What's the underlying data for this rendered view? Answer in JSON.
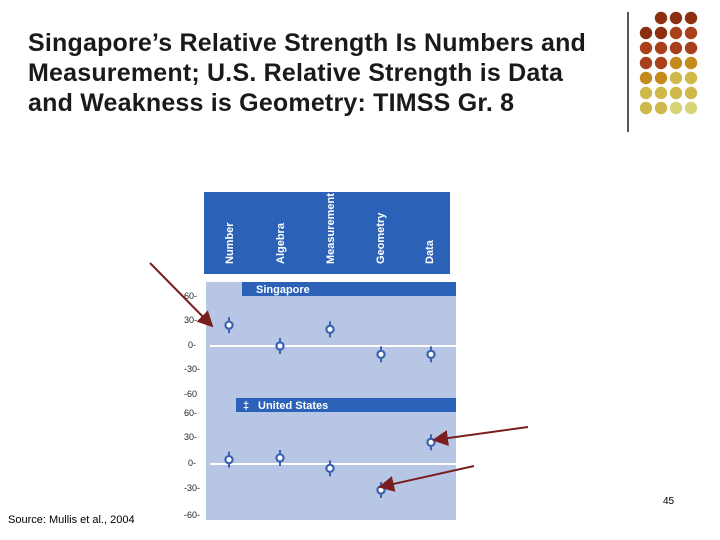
{
  "slide": {
    "title": "Singapore’s Relative Strength Is Numbers and Measurement; U.S. Relative Strength is Data and Weakness is Geometry: TIMSS Gr. 8",
    "source": "Source: Mullis et al., 2004",
    "page_number": "45"
  },
  "decor": {
    "dot_colors": [
      "#8b2f10",
      "#a8401c",
      "#c58a1c",
      "#cfb94a",
      "#d8d478"
    ]
  },
  "chart_data": [
    {
      "type": "scatter",
      "title": "Singapore",
      "categories": [
        "Number",
        "Algebra",
        "Measurement",
        "Geometry",
        "Data"
      ],
      "values": [
        25,
        0,
        20,
        -10,
        -10
      ],
      "yticks": [
        "60-",
        "30-",
        "0-",
        "-30-",
        "-60"
      ],
      "ylim": [
        -60,
        60
      ],
      "marker_color": "#3a63b0"
    },
    {
      "type": "scatter",
      "title": "United States",
      "title_prefix": "‡",
      "categories": [
        "Number",
        "Algebra",
        "Measurement",
        "Geometry",
        "Data"
      ],
      "values": [
        5,
        7,
        -5,
        -30,
        25
      ],
      "yticks": [
        "60-",
        "30-",
        "0-",
        "-30-",
        "-60-"
      ],
      "ylim": [
        -60,
        60
      ],
      "marker_color": "#3a63b0"
    }
  ],
  "colors": {
    "header_blue": "#2b62b8",
    "panel_bg": "#b8c6e6",
    "arrow": "#7a1f1f"
  }
}
